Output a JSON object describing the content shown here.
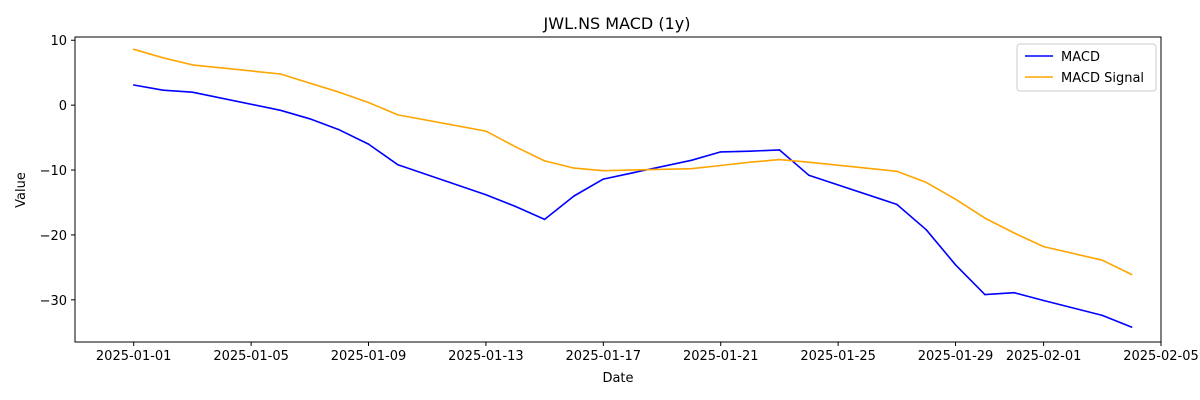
{
  "chart_data": {
    "type": "line",
    "title": "JWL.NS MACD (1y)",
    "xlabel": "Date",
    "ylabel": "Value",
    "xlim": [
      "2024-12-30",
      "2025-02-05"
    ],
    "ylim": [
      -36.5,
      10.5
    ],
    "grid": false,
    "legend_position": "top-right",
    "x_ticks": [
      "2025-01-01",
      "2025-01-05",
      "2025-01-09",
      "2025-01-13",
      "2025-01-17",
      "2025-01-21",
      "2025-01-25",
      "2025-01-29",
      "2025-02-01",
      "2025-02-05"
    ],
    "y_ticks": [
      "10",
      "0",
      "−10",
      "−20",
      "−30"
    ],
    "x": [
      "2025-01-01",
      "2025-01-02",
      "2025-01-03",
      "2025-01-06",
      "2025-01-07",
      "2025-01-08",
      "2025-01-09",
      "2025-01-10",
      "2025-01-13",
      "2025-01-14",
      "2025-01-15",
      "2025-01-16",
      "2025-01-17",
      "2025-01-20",
      "2025-01-21",
      "2025-01-22",
      "2025-01-23",
      "2025-01-24",
      "2025-01-27",
      "2025-01-28",
      "2025-01-29",
      "2025-01-30",
      "2025-01-31",
      "2025-02-01",
      "2025-02-03",
      "2025-02-04"
    ],
    "series": [
      {
        "name": "MACD",
        "color": "#0000ff",
        "values": [
          3.1,
          2.3,
          2.0,
          -0.8,
          -2.1,
          -3.8,
          -6.0,
          -9.2,
          -13.8,
          -15.6,
          -17.6,
          -14.0,
          -11.4,
          -8.5,
          -7.2,
          -7.1,
          -6.9,
          -10.8,
          -15.3,
          -19.2,
          -24.6,
          -29.2,
          -28.9,
          -30.1,
          -32.4,
          -34.2
        ]
      },
      {
        "name": "MACD Signal",
        "color": "#ffa500",
        "values": [
          8.6,
          7.3,
          6.2,
          4.8,
          3.4,
          2.0,
          0.4,
          -1.5,
          -4.0,
          -6.4,
          -8.6,
          -9.7,
          -10.1,
          -9.8,
          -9.3,
          -8.8,
          -8.4,
          -8.8,
          -10.2,
          -11.9,
          -14.5,
          -17.4,
          -19.7,
          -21.8,
          -23.9,
          -26.1
        ]
      }
    ]
  }
}
